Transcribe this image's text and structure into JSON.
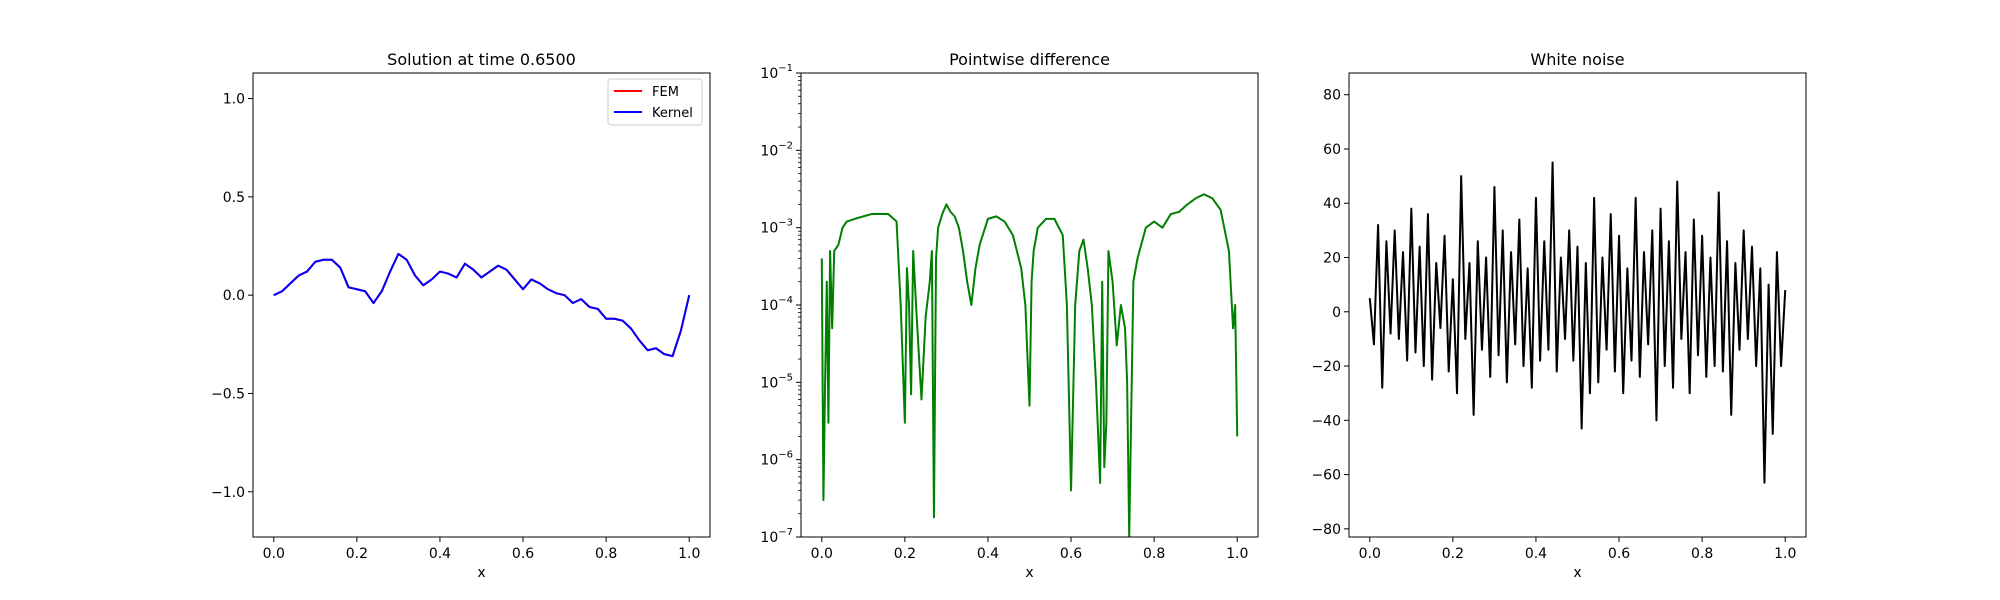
{
  "chart_data": [
    {
      "type": "line",
      "title": "Solution at time 0.6500",
      "xlabel": "x",
      "ylabel": "",
      "xlim": [
        -0.05,
        1.05
      ],
      "ylim": [
        -1.23,
        1.13
      ],
      "xticks": [
        0.0,
        0.2,
        0.4,
        0.6,
        0.8,
        1.0
      ],
      "xtick_labels": [
        "0.0",
        "0.2",
        "0.4",
        "0.6",
        "0.8",
        "1.0"
      ],
      "yticks": [
        -1.0,
        -0.5,
        0.0,
        0.5,
        1.0
      ],
      "ytick_labels": [
        "−1.0",
        "−0.5",
        "0.0",
        "0.5",
        "1.0"
      ],
      "legend": "top-right",
      "series": [
        {
          "name": "FEM",
          "color": "#ff0000",
          "x": [
            0.0,
            0.02,
            0.04,
            0.06,
            0.08,
            0.1,
            0.12,
            0.14,
            0.16,
            0.18,
            0.2,
            0.22,
            0.24,
            0.26,
            0.28,
            0.3,
            0.32,
            0.34,
            0.36,
            0.38,
            0.4,
            0.42,
            0.44,
            0.46,
            0.48,
            0.5,
            0.52,
            0.54,
            0.56,
            0.58,
            0.6,
            0.62,
            0.64,
            0.66,
            0.68,
            0.7,
            0.72,
            0.74,
            0.76,
            0.78,
            0.8,
            0.82,
            0.84,
            0.86,
            0.88,
            0.9,
            0.92,
            0.94,
            0.96,
            0.98,
            1.0
          ],
          "y": [
            0.0,
            0.02,
            0.06,
            0.1,
            0.12,
            0.17,
            0.18,
            0.18,
            0.14,
            0.04,
            0.03,
            0.02,
            -0.04,
            0.02,
            0.12,
            0.21,
            0.18,
            0.1,
            0.05,
            0.08,
            0.12,
            0.11,
            0.09,
            0.16,
            0.13,
            0.09,
            0.12,
            0.15,
            0.13,
            0.08,
            0.03,
            0.08,
            0.06,
            0.03,
            0.01,
            0.0,
            -0.04,
            -0.02,
            -0.06,
            -0.07,
            -0.12,
            -0.12,
            -0.13,
            -0.17,
            -0.23,
            -0.28,
            -0.27,
            -0.3,
            -0.31,
            -0.18,
            0.0
          ]
        },
        {
          "name": "Kernel",
          "color": "#0000ff",
          "x": [
            0.0,
            0.02,
            0.04,
            0.06,
            0.08,
            0.1,
            0.12,
            0.14,
            0.16,
            0.18,
            0.2,
            0.22,
            0.24,
            0.26,
            0.28,
            0.3,
            0.32,
            0.34,
            0.36,
            0.38,
            0.4,
            0.42,
            0.44,
            0.46,
            0.48,
            0.5,
            0.52,
            0.54,
            0.56,
            0.58,
            0.6,
            0.62,
            0.64,
            0.66,
            0.68,
            0.7,
            0.72,
            0.74,
            0.76,
            0.78,
            0.8,
            0.82,
            0.84,
            0.86,
            0.88,
            0.9,
            0.92,
            0.94,
            0.96,
            0.98,
            1.0
          ],
          "y": [
            0.0,
            0.02,
            0.06,
            0.1,
            0.12,
            0.17,
            0.18,
            0.18,
            0.14,
            0.04,
            0.03,
            0.02,
            -0.04,
            0.02,
            0.12,
            0.21,
            0.18,
            0.1,
            0.05,
            0.08,
            0.12,
            0.11,
            0.09,
            0.16,
            0.13,
            0.09,
            0.12,
            0.15,
            0.13,
            0.08,
            0.03,
            0.08,
            0.06,
            0.03,
            0.01,
            0.0,
            -0.04,
            -0.02,
            -0.06,
            -0.07,
            -0.12,
            -0.12,
            -0.13,
            -0.17,
            -0.23,
            -0.28,
            -0.27,
            -0.3,
            -0.31,
            -0.18,
            0.0
          ]
        }
      ]
    },
    {
      "type": "line",
      "title": "Pointwise difference",
      "xlabel": "x",
      "ylabel": "",
      "yscale": "log",
      "xlim": [
        -0.05,
        1.05
      ],
      "ylim": [
        1e-07,
        0.1
      ],
      "xticks": [
        0.0,
        0.2,
        0.4,
        0.6,
        0.8,
        1.0
      ],
      "xtick_labels": [
        "0.0",
        "0.2",
        "0.4",
        "0.6",
        "0.8",
        "1.0"
      ],
      "yticks": [
        1e-07,
        1e-06,
        1e-05,
        0.0001,
        0.001,
        0.01,
        0.1
      ],
      "ytick_exponents": [
        "−7",
        "−6",
        "−5",
        "−4",
        "−3",
        "−2",
        "−1"
      ],
      "ytick_base": "10",
      "series": [
        {
          "color": "#008000",
          "x": [
            0.0,
            0.004,
            0.008,
            0.012,
            0.016,
            0.02,
            0.025,
            0.03,
            0.04,
            0.05,
            0.06,
            0.08,
            0.1,
            0.12,
            0.14,
            0.16,
            0.18,
            0.19,
            0.2,
            0.205,
            0.21,
            0.215,
            0.22,
            0.23,
            0.24,
            0.25,
            0.26,
            0.265,
            0.27,
            0.275,
            0.28,
            0.29,
            0.3,
            0.31,
            0.32,
            0.33,
            0.34,
            0.35,
            0.36,
            0.37,
            0.38,
            0.4,
            0.42,
            0.44,
            0.46,
            0.48,
            0.49,
            0.5,
            0.505,
            0.51,
            0.52,
            0.54,
            0.56,
            0.58,
            0.59,
            0.6,
            0.61,
            0.62,
            0.63,
            0.64,
            0.65,
            0.66,
            0.67,
            0.675,
            0.68,
            0.685,
            0.69,
            0.7,
            0.71,
            0.72,
            0.73,
            0.735,
            0.74,
            0.75,
            0.76,
            0.78,
            0.8,
            0.82,
            0.84,
            0.86,
            0.88,
            0.9,
            0.92,
            0.94,
            0.96,
            0.98,
            0.99,
            0.995,
            1.0
          ],
          "y": [
            0.0004,
            3e-07,
            1e-05,
            0.0002,
            3e-06,
            0.0005,
            5e-05,
            0.0005,
            0.0006,
            0.001,
            0.0012,
            0.0013,
            0.0014,
            0.0015,
            0.0015,
            0.0015,
            0.0012,
            0.0001,
            3e-06,
            0.0003,
            0.0001,
            7e-06,
            0.0005,
            5e-05,
            6e-06,
            7e-05,
            0.0002,
            0.0005,
            1.8e-07,
            0.0004,
            0.001,
            0.0015,
            0.002,
            0.0016,
            0.0014,
            0.001,
            0.0005,
            0.0002,
            0.0001,
            0.0003,
            0.0006,
            0.0013,
            0.0014,
            0.0012,
            0.0008,
            0.0003,
            0.0001,
            5e-06,
            0.0002,
            0.0005,
            0.001,
            0.0013,
            0.0013,
            0.0008,
            0.0001,
            4e-07,
            0.0001,
            0.0005,
            0.0007,
            0.0003,
            0.0001,
            1e-05,
            5e-07,
            0.0002,
            8e-07,
            3e-06,
            0.0005,
            0.0002,
            3e-05,
            0.0001,
            5e-05,
            1e-05,
            1e-07,
            0.0002,
            0.0004,
            0.001,
            0.0012,
            0.001,
            0.0015,
            0.0016,
            0.002,
            0.0024,
            0.0027,
            0.0024,
            0.0017,
            0.0005,
            5e-05,
            0.0001,
            2e-06
          ]
        }
      ]
    },
    {
      "type": "line",
      "title": "White noise",
      "xlabel": "x",
      "ylabel": "",
      "xlim": [
        -0.05,
        1.05
      ],
      "ylim": [
        -83,
        88
      ],
      "xticks": [
        0.0,
        0.2,
        0.4,
        0.6,
        0.8,
        1.0
      ],
      "xtick_labels": [
        "0.0",
        "0.2",
        "0.4",
        "0.6",
        "0.8",
        "1.0"
      ],
      "yticks": [
        -80,
        -60,
        -40,
        -20,
        0,
        20,
        40,
        60,
        80
      ],
      "ytick_labels": [
        "−80",
        "−60",
        "−40",
        "−20",
        "0",
        "20",
        "40",
        "60",
        "80"
      ],
      "series": [
        {
          "color": "#000000",
          "x": [
            0.0,
            0.01,
            0.02,
            0.03,
            0.04,
            0.05,
            0.06,
            0.07,
            0.08,
            0.09,
            0.1,
            0.11,
            0.12,
            0.13,
            0.14,
            0.15,
            0.16,
            0.17,
            0.18,
            0.19,
            0.2,
            0.21,
            0.22,
            0.23,
            0.24,
            0.25,
            0.26,
            0.27,
            0.28,
            0.29,
            0.3,
            0.31,
            0.32,
            0.33,
            0.34,
            0.35,
            0.36,
            0.37,
            0.38,
            0.39,
            0.4,
            0.41,
            0.42,
            0.43,
            0.44,
            0.45,
            0.46,
            0.47,
            0.48,
            0.49,
            0.5,
            0.51,
            0.52,
            0.53,
            0.54,
            0.55,
            0.56,
            0.57,
            0.58,
            0.59,
            0.6,
            0.61,
            0.62,
            0.63,
            0.64,
            0.65,
            0.66,
            0.67,
            0.68,
            0.69,
            0.7,
            0.71,
            0.72,
            0.73,
            0.74,
            0.75,
            0.76,
            0.77,
            0.78,
            0.79,
            0.8,
            0.81,
            0.82,
            0.83,
            0.84,
            0.85,
            0.86,
            0.87,
            0.88,
            0.89,
            0.9,
            0.91,
            0.92,
            0.93,
            0.94,
            0.95,
            0.96,
            0.97,
            0.98,
            0.99,
            1.0
          ],
          "y": [
            5,
            -12,
            32,
            -28,
            26,
            -8,
            30,
            -10,
            22,
            -18,
            38,
            -15,
            24,
            -20,
            36,
            -25,
            18,
            -6,
            28,
            -22,
            12,
            -30,
            50,
            -10,
            18,
            -38,
            26,
            -14,
            20,
            -24,
            46,
            -16,
            30,
            -26,
            22,
            -12,
            34,
            -20,
            16,
            -28,
            42,
            -18,
            26,
            -14,
            55,
            -22,
            20,
            -10,
            30,
            -18,
            24,
            -43,
            18,
            -30,
            42,
            -26,
            20,
            -14,
            36,
            -22,
            28,
            -30,
            16,
            -18,
            42,
            -24,
            22,
            -12,
            30,
            -40,
            38,
            -20,
            26,
            -28,
            48,
            -10,
            22,
            -30,
            34,
            -16,
            28,
            -24,
            20,
            -20,
            44,
            -22,
            26,
            -38,
            18,
            -14,
            30,
            -10,
            24,
            -20,
            16,
            -63,
            10,
            -45,
            22,
            -20,
            8
          ]
        }
      ]
    }
  ]
}
